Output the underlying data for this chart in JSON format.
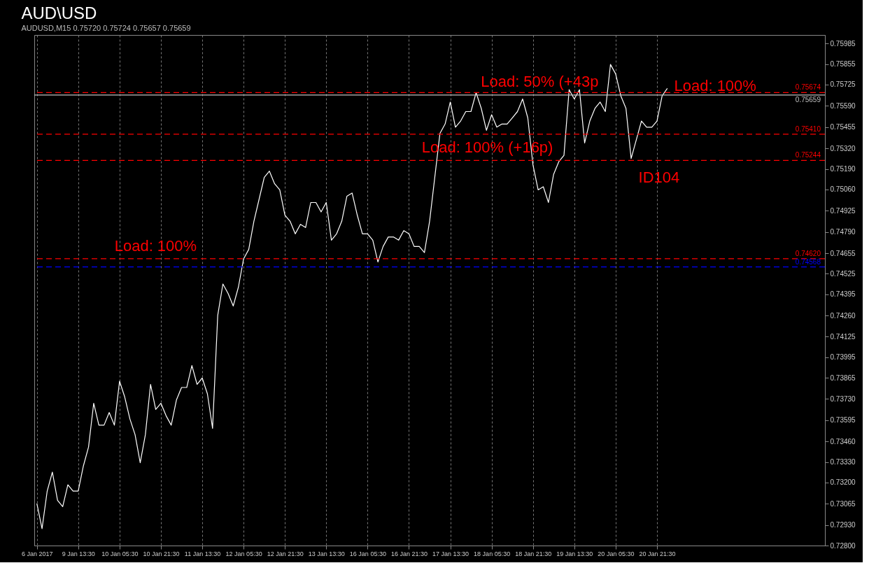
{
  "chart_data": {
    "type": "line",
    "title": "AUD\\USD",
    "subtitle": "AUDUSD,M15  0.75720 0.75724 0.75657 0.75659",
    "categories": [
      "6 Jan 2017",
      null,
      null,
      null,
      null,
      null,
      null,
      null,
      "9 Jan 13:30",
      null,
      null,
      null,
      null,
      null,
      null,
      null,
      "10 Jan 05:30",
      null,
      null,
      null,
      null,
      null,
      null,
      null,
      "10 Jan 21:30",
      null,
      null,
      null,
      null,
      null,
      null,
      null,
      "11 Jan 13:30",
      null,
      null,
      null,
      null,
      null,
      null,
      null,
      "12 Jan 05:30",
      null,
      null,
      null,
      null,
      null,
      null,
      null,
      "12 Jan 21:30",
      null,
      null,
      null,
      null,
      null,
      null,
      null,
      "13 Jan 13:30",
      null,
      null,
      null,
      null,
      null,
      null,
      null,
      "16 Jan 05:30",
      null,
      null,
      null,
      null,
      null,
      null,
      null,
      "16 Jan 21:30",
      null,
      null,
      null,
      null,
      null,
      null,
      null,
      "17 Jan 13:30",
      null,
      null,
      null,
      null,
      null,
      null,
      null,
      "18 Jan 05:30",
      null,
      null,
      null,
      null,
      null,
      null,
      null,
      "18 Jan 21:30",
      null,
      null,
      null,
      null,
      null,
      null,
      null,
      "19 Jan 13:30",
      null,
      null,
      null,
      null,
      null,
      null,
      null,
      "20 Jan 05:30",
      null,
      null,
      null,
      null,
      null,
      null,
      null,
      "20 Jan 21:30",
      null,
      null,
      null,
      null,
      null,
      null,
      null,
      null,
      null,
      null,
      null,
      null,
      null,
      null,
      null,
      null,
      null,
      null,
      null,
      null,
      null,
      null,
      null,
      null,
      null,
      null,
      null,
      null,
      null,
      null,
      null,
      null
    ],
    "series": [
      {
        "color": "#ffffff",
        "values": [
          0.73067,
          0.72907,
          0.73146,
          0.73266,
          0.73087,
          0.73047,
          0.73186,
          0.73146,
          0.73146,
          0.73305,
          0.73425,
          0.73703,
          0.73564,
          0.73564,
          0.73644,
          0.73564,
          0.73843,
          0.73743,
          0.73604,
          0.73504,
          0.73325,
          0.73504,
          0.73823,
          0.73664,
          0.73703,
          0.73624,
          0.73564,
          0.73723,
          0.73803,
          0.73803,
          0.73942,
          0.73823,
          0.73863,
          0.73763,
          0.73544,
          0.74261,
          0.7446,
          0.744,
          0.7432,
          0.7444,
          0.74619,
          0.74679,
          0.74858,
          0.74997,
          0.75136,
          0.75176,
          0.75096,
          0.75057,
          0.74897,
          0.74858,
          0.74778,
          0.74838,
          0.74818,
          0.74977,
          0.74977,
          0.74917,
          0.74977,
          0.74738,
          0.74778,
          0.74858,
          0.75017,
          0.75037,
          0.74897,
          0.74778,
          0.74778,
          0.74738,
          0.74599,
          0.74698,
          0.74758,
          0.74758,
          0.74738,
          0.74798,
          0.74778,
          0.74698,
          0.74698,
          0.74659,
          0.74858,
          0.75136,
          0.75415,
          0.75475,
          0.75614,
          0.75455,
          0.75494,
          0.75554,
          0.75554,
          0.75674,
          0.75574,
          0.75435,
          0.75534,
          0.75455,
          0.75475,
          0.75475,
          0.75514,
          0.75554,
          0.75634,
          0.75514,
          0.75216,
          0.75057,
          0.75077,
          0.74977,
          0.75156,
          0.75236,
          0.75276,
          0.75693,
          0.75634,
          0.75693,
          0.75355,
          0.75494,
          0.75574,
          0.75614,
          0.75554,
          0.75853,
          0.75793,
          0.75654,
          0.75574,
          0.75256,
          0.75375,
          0.75494,
          0.75455,
          0.75455,
          0.75494,
          0.75654,
          0.75701,
          null,
          null,
          null,
          null,
          null,
          null,
          null,
          null,
          null,
          null,
          null,
          null,
          null,
          null,
          null,
          null,
          null,
          null,
          null,
          null,
          null,
          null,
          null,
          null,
          null,
          null,
          null,
          null,
          null,
          null
        ]
      }
    ],
    "ylim": [
      0.728,
      0.7604
    ],
    "yticks": [
      0.75985,
      0.75855,
      0.75725,
      {
        "value": 0.7559,
        "label": "0.75590"
      },
      0.75455,
      {
        "value": 0.7532,
        "label": "0.75320"
      },
      {
        "value": 0.7519,
        "label": "0.75190"
      },
      {
        "value": 0.7506,
        "label": "0.75060"
      },
      0.74925,
      {
        "value": 0.7479,
        "label": "0.74790"
      },
      0.74655,
      0.74525,
      0.74395,
      {
        "value": 0.7426,
        "label": "0.74260"
      },
      0.74125,
      0.73995,
      0.73865,
      {
        "value": 0.7373,
        "label": "0.73730"
      },
      0.73595,
      {
        "value": 0.7346,
        "label": "0.73460"
      },
      {
        "value": 0.7333,
        "label": "0.73330"
      },
      {
        "value": 0.732,
        "label": "0.73200"
      },
      0.73065,
      {
        "value": 0.7293,
        "label": "0.72930"
      },
      {
        "value": 0.728,
        "label": "0.72800"
      }
    ],
    "ref_lines": [
      {
        "axis": "y",
        "value": 0.75674,
        "label": "0.75674",
        "color": "#ff0000",
        "line_style": "dashed"
      },
      {
        "axis": "y",
        "value": 0.75659,
        "label": "0.75659",
        "color": "#c0c0c0",
        "line_style": "solid"
      },
      {
        "axis": "y",
        "value": 0.7541,
        "label": "0.75410",
        "color": "#ff0000",
        "line_style": "dashed"
      },
      {
        "axis": "y",
        "value": 0.75244,
        "label": "0.75244",
        "color": "#ff0000",
        "line_style": "dashed"
      },
      {
        "axis": "y",
        "value": 0.7462,
        "label": "0.74620",
        "color": "#ff0000",
        "line_style": "dashed"
      },
      {
        "axis": "y",
        "value": 0.74568,
        "label": "0.74568",
        "color": "#0000ff",
        "line_style": "dashed"
      }
    ],
    "annotations": [
      "Load: 100%",
      "Load: 100% (+16p)",
      "Load: 50% (+43p",
      "Load: 100%",
      "ID104"
    ],
    "grid": "x",
    "marker": "none",
    "line_style": "solid"
  }
}
